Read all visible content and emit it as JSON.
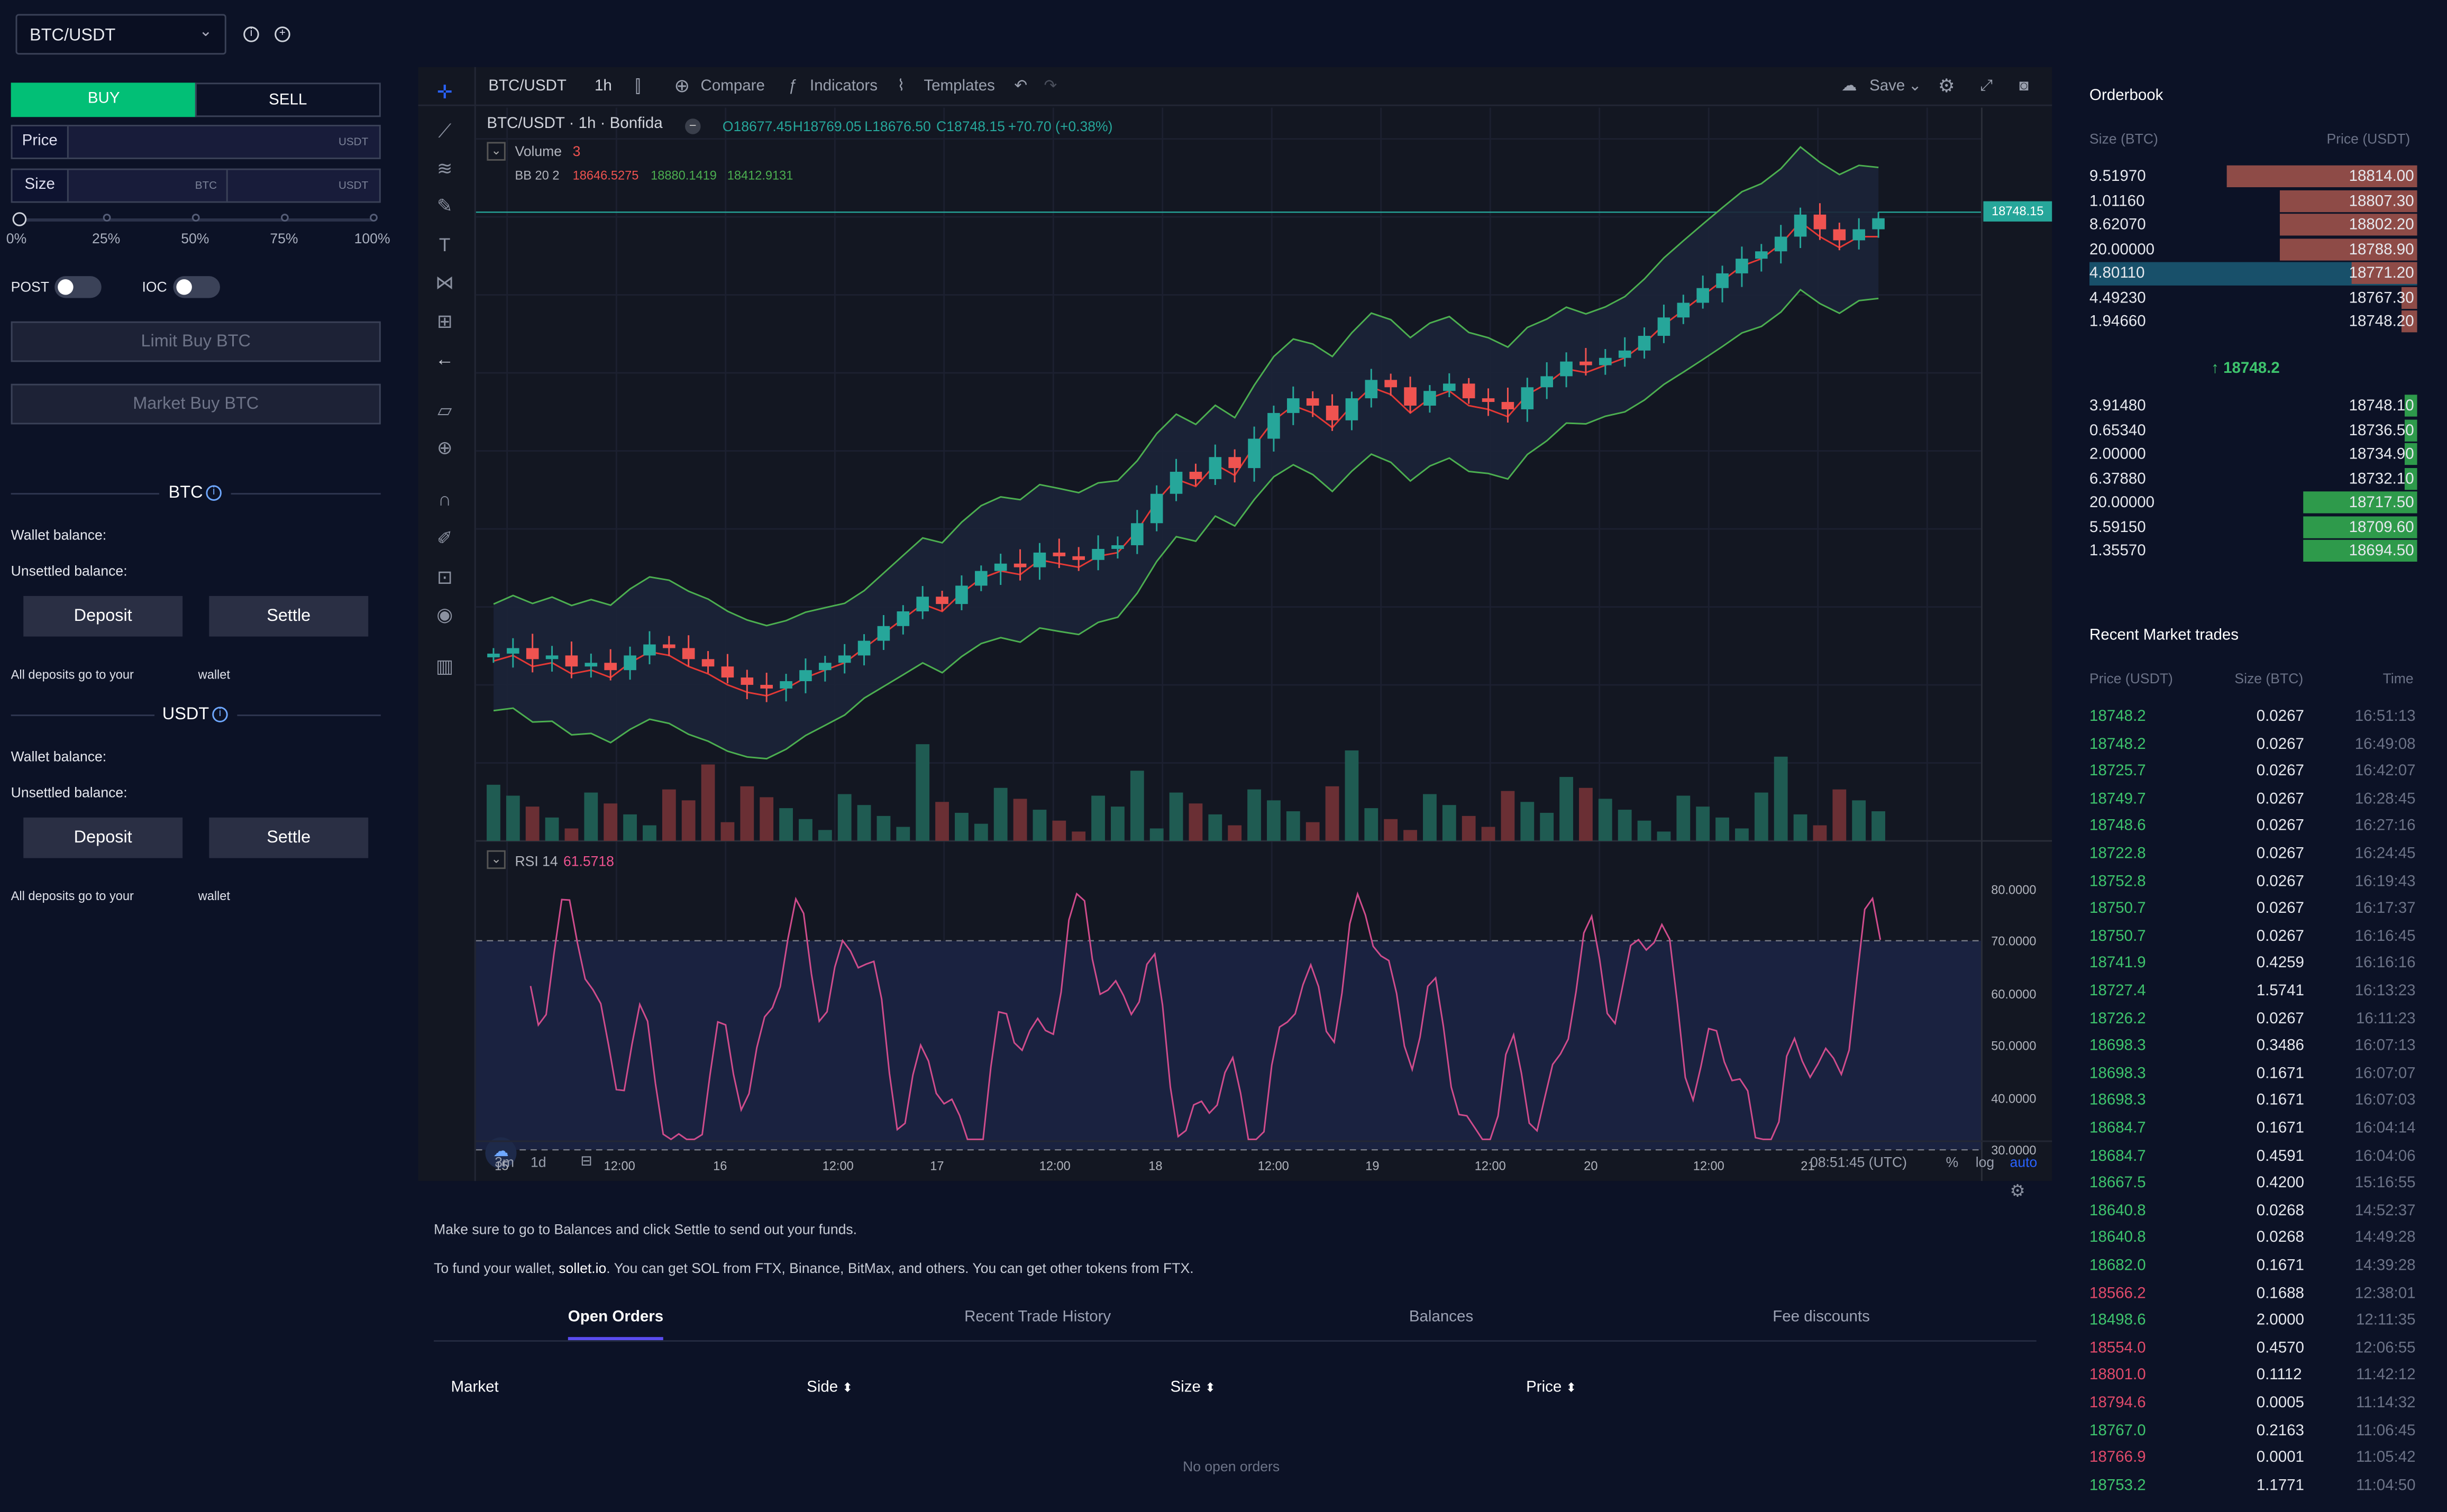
{
  "market": {
    "selected": "BTC/USDT"
  },
  "form": {
    "buy": "BUY",
    "sell": "SELL",
    "price_label": "Price",
    "price_unit": "USDT",
    "size_label": "Size",
    "size_unit_base": "BTC",
    "size_unit_quote": "USDT",
    "pcts": [
      "0%",
      "25%",
      "50%",
      "75%",
      "100%"
    ],
    "post": "POST",
    "ioc": "IOC",
    "limit_btn": "Limit Buy BTC",
    "market_btn": "Market Buy BTC"
  },
  "balances": [
    {
      "coin": "BTC",
      "wallet": "Wallet balance:",
      "unsettled": "Unsettled balance:",
      "deposit": "Deposit",
      "settle": "Settle",
      "note1": "All deposits go to your",
      "note2": "wallet"
    },
    {
      "coin": "USDT",
      "wallet": "Wallet balance:",
      "unsettled": "Unsettled balance:",
      "deposit": "Deposit",
      "settle": "Settle",
      "note1": "All deposits go to your",
      "note2": "wallet"
    }
  ],
  "chart": {
    "symbol": "BTC/USDT",
    "interval": "1h",
    "compare": "Compare",
    "indicators": "Indicators",
    "templates": "Templates",
    "save": "Save",
    "title": "BTC/USDT · 1h · Bonfida",
    "o": "O18677.45",
    "h": "H18769.05",
    "l": "L18676.50",
    "c": "C18748.15",
    "chg": "+70.70 (+0.38%)",
    "volume_label": "Volume",
    "volume_val": "3",
    "bb_label": "BB 20 2",
    "bb1": "18646.5275",
    "bb2": "18880.1419",
    "bb3": "18412.9131",
    "price_tag": "18748.15",
    "rsi_label": "RSI 14",
    "rsi_val": "61.5718",
    "rsi_ticks": [
      "80.0000",
      "70.0000",
      "60.0000",
      "50.0000",
      "40.0000",
      "30.0000"
    ],
    "x_ticks": [
      "15",
      "12:00",
      "16",
      "12:00",
      "17",
      "12:00",
      "18",
      "12:00",
      "19",
      "12:00",
      "20",
      "12:00",
      "21"
    ],
    "range1": "3m",
    "range2": "1d",
    "clock": "08:51:45 (UTC)",
    "pct": "%",
    "log": "log",
    "auto": "auto"
  },
  "chart_data": {
    "type": "candlestick",
    "series": [
      {
        "name": "BTC/USDT",
        "close": [
          18605,
          18620,
          18590,
          18600,
          18570,
          18580,
          18560,
          18600,
          18630,
          18620,
          18590,
          18570,
          18540,
          18520,
          18510,
          18530,
          18560,
          18580,
          18600,
          18640,
          18680,
          18720,
          18760,
          18740,
          18790,
          18830,
          18850,
          18840,
          18880,
          18870,
          18860,
          18890,
          18900,
          18960,
          19040,
          19100,
          19080,
          19140,
          19110,
          19190,
          19260,
          19300,
          19280,
          19240,
          19300,
          19350,
          19330,
          19280,
          19320,
          19340,
          19300,
          19290,
          19270,
          19330,
          19360,
          19400,
          19390,
          19410,
          19430,
          19470,
          19520,
          19560,
          19600,
          19640,
          19680,
          19700,
          19740,
          19800,
          19760,
          19730,
          19760,
          18748
        ]
      }
    ],
    "indicators": {
      "bb": "BB 20 2",
      "rsi": "RSI 14"
    },
    "rsi_ylim": [
      25,
      85
    ]
  },
  "orderbook": {
    "title": "Orderbook",
    "col_size": "Size (BTC)",
    "col_price": "Price (USDT)",
    "mid": "↑ 18748.2",
    "asks": [
      {
        "size": "9.51970",
        "price": "18814.00",
        "w": 0.58
      },
      {
        "size": "1.01160",
        "price": "18807.30",
        "w": 0.42
      },
      {
        "size": "8.62070",
        "price": "18802.20",
        "w": 0.42
      },
      {
        "size": "20.00000",
        "price": "18788.90",
        "w": 0.42
      },
      {
        "size": "4.80110",
        "price": "18771.20",
        "w": 0.2
      },
      {
        "size": "4.49230",
        "price": "18767.30",
        "w": 0.05
      },
      {
        "size": "1.94660",
        "price": "18748.20",
        "w": 0.05
      }
    ],
    "bids": [
      {
        "size": "3.91480",
        "price": "18748.10",
        "w": 0.04
      },
      {
        "size": "0.65340",
        "price": "18736.50",
        "w": 0.04
      },
      {
        "size": "2.00000",
        "price": "18734.90",
        "w": 0.04
      },
      {
        "size": "6.37880",
        "price": "18732.10",
        "w": 0.04
      },
      {
        "size": "20.00000",
        "price": "18717.50",
        "w": 0.35
      },
      {
        "size": "5.59150",
        "price": "18709.60",
        "w": 0.35
      },
      {
        "size": "1.35570",
        "price": "18694.50",
        "w": 0.35
      }
    ]
  },
  "trades": {
    "title": "Recent Market trades",
    "col_price": "Price (USDT)",
    "col_size": "Size (BTC)",
    "col_time": "Time",
    "rows": [
      {
        "p": "18748.2",
        "s": "0.0267",
        "t": "16:51:13",
        "c": "g"
      },
      {
        "p": "18748.2",
        "s": "0.0267",
        "t": "16:49:08",
        "c": "g"
      },
      {
        "p": "18725.7",
        "s": "0.0267",
        "t": "16:42:07",
        "c": "g"
      },
      {
        "p": "18749.7",
        "s": "0.0267",
        "t": "16:28:45",
        "c": "g"
      },
      {
        "p": "18748.6",
        "s": "0.0267",
        "t": "16:27:16",
        "c": "g"
      },
      {
        "p": "18722.8",
        "s": "0.0267",
        "t": "16:24:45",
        "c": "g"
      },
      {
        "p": "18752.8",
        "s": "0.0267",
        "t": "16:19:43",
        "c": "g"
      },
      {
        "p": "18750.7",
        "s": "0.0267",
        "t": "16:17:37",
        "c": "g"
      },
      {
        "p": "18750.7",
        "s": "0.0267",
        "t": "16:16:45",
        "c": "g"
      },
      {
        "p": "18741.9",
        "s": "0.4259",
        "t": "16:16:16",
        "c": "g"
      },
      {
        "p": "18727.4",
        "s": "1.5741",
        "t": "16:13:23",
        "c": "g"
      },
      {
        "p": "18726.2",
        "s": "0.0267",
        "t": "16:11:23",
        "c": "g"
      },
      {
        "p": "18698.3",
        "s": "0.3486",
        "t": "16:07:13",
        "c": "g"
      },
      {
        "p": "18698.3",
        "s": "0.1671",
        "t": "16:07:07",
        "c": "g"
      },
      {
        "p": "18698.3",
        "s": "0.1671",
        "t": "16:07:03",
        "c": "g"
      },
      {
        "p": "18684.7",
        "s": "0.1671",
        "t": "16:04:14",
        "c": "g"
      },
      {
        "p": "18684.7",
        "s": "0.4591",
        "t": "16:04:06",
        "c": "g"
      },
      {
        "p": "18667.5",
        "s": "0.4200",
        "t": "15:16:55",
        "c": "g"
      },
      {
        "p": "18640.8",
        "s": "0.0268",
        "t": "14:52:37",
        "c": "g"
      },
      {
        "p": "18640.8",
        "s": "0.0268",
        "t": "14:49:28",
        "c": "g"
      },
      {
        "p": "18682.0",
        "s": "0.1671",
        "t": "14:39:28",
        "c": "g"
      },
      {
        "p": "18566.2",
        "s": "0.1688",
        "t": "12:38:01",
        "c": "r"
      },
      {
        "p": "18498.6",
        "s": "2.0000",
        "t": "12:11:35",
        "c": "g"
      },
      {
        "p": "18554.0",
        "s": "0.4570",
        "t": "12:06:55",
        "c": "r"
      },
      {
        "p": "18801.0",
        "s": "0.1112",
        "t": "11:42:12",
        "c": "r"
      },
      {
        "p": "18794.6",
        "s": "0.0005",
        "t": "11:14:32",
        "c": "r"
      },
      {
        "p": "18767.0",
        "s": "0.2163",
        "t": "11:06:45",
        "c": "g"
      },
      {
        "p": "18766.9",
        "s": "0.0001",
        "t": "11:05:42",
        "c": "r"
      },
      {
        "p": "18753.2",
        "s": "1.1771",
        "t": "11:04:50",
        "c": "g"
      }
    ]
  },
  "notice": {
    "line1": "Make sure to go to Balances and click Settle to send out your funds.",
    "line2a": "To fund your wallet,",
    "line2link": "sollet.io",
    "line2b": ". You can get SOL from FTX, Binance, BitMax, and others. You can get other tokens from FTX."
  },
  "bottom": {
    "tabs": [
      "Open Orders",
      "Recent Trade History",
      "Balances",
      "Fee discounts"
    ],
    "cols": [
      "Market",
      "Side",
      "Size",
      "Price"
    ],
    "empty": "No open orders"
  },
  "colors": {
    "buy": "#02bf76",
    "up": "#26a69a",
    "down": "#ef5350",
    "ask": "#8e4b47",
    "bid": "#2e9a4b",
    "accent": "#2962ff"
  }
}
